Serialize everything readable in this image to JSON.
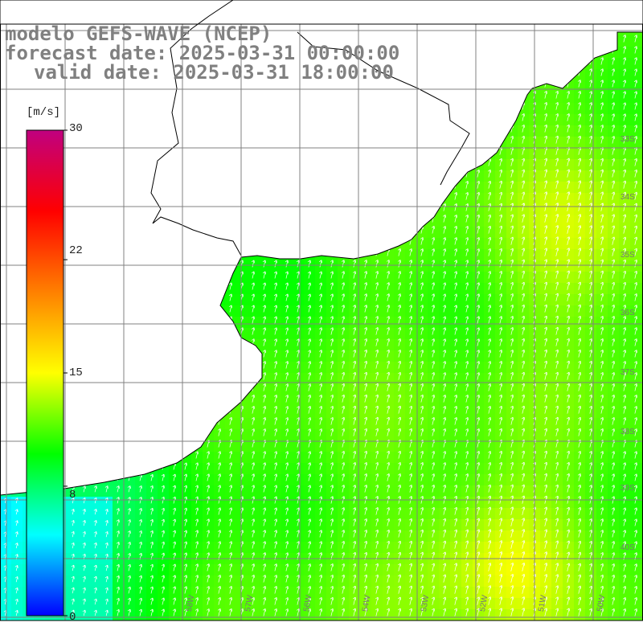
{
  "title": {
    "line1": "modelo GEFS-WAVE (NCEP)",
    "line2": "forecast date: 2025-03-31 00:00:00",
    "line3": "valid date: 2025-03-31 18:00:00"
  },
  "colorbar": {
    "unit": "[m/s]",
    "ticks": [
      "30",
      "22",
      "15",
      "8",
      "0"
    ],
    "tick_values": [
      30,
      22,
      15,
      8,
      0
    ],
    "min": 0,
    "max": 30,
    "colors": [
      "#0000ff",
      "#00ffff",
      "#00ff00",
      "#ffff00",
      "#ff8000",
      "#ff0000",
      "#c00080"
    ]
  },
  "map": {
    "lat_labels": [
      "33S",
      "34S",
      "35S",
      "36S",
      "37S",
      "38S",
      "39S",
      "40S"
    ],
    "lon_labels": [
      "58W",
      "57W",
      "56W",
      "54W",
      "53W",
      "52W",
      "51W",
      "50W"
    ],
    "land_color": "#ffffff",
    "grid_color": "#808080",
    "arrow_color": "#ffffff"
  }
}
